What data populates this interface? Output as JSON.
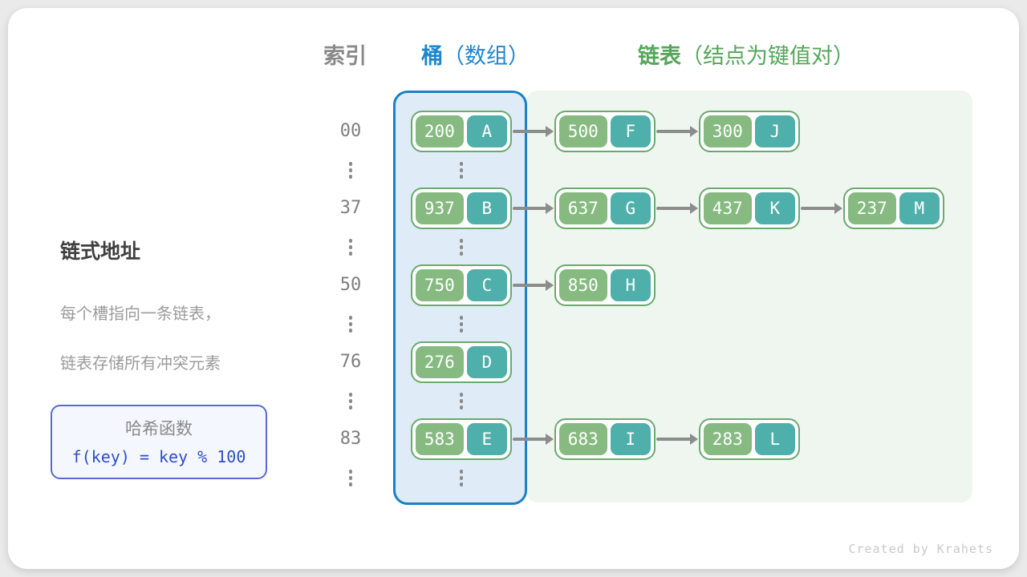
{
  "headers": {
    "index": "索引",
    "bucket_bold": "桶",
    "bucket_rest": "（数组）",
    "list_bold": "链表",
    "list_rest": "（结点为键值对）"
  },
  "left_panel": {
    "title": "链式地址",
    "desc_line1": "每个槽指向一条链表，",
    "desc_line2": "链表存储所有冲突元素",
    "hash_box": {
      "title": "哈希函数",
      "formula": "f(key) = key % 100"
    }
  },
  "rows": [
    {
      "index": "00",
      "nodes": [
        {
          "key": "200",
          "val": "A"
        },
        {
          "key": "500",
          "val": "F"
        },
        {
          "key": "300",
          "val": "J"
        }
      ]
    },
    {
      "index": "37",
      "nodes": [
        {
          "key": "937",
          "val": "B"
        },
        {
          "key": "637",
          "val": "G"
        },
        {
          "key": "437",
          "val": "K"
        },
        {
          "key": "237",
          "val": "M"
        }
      ]
    },
    {
      "index": "50",
      "nodes": [
        {
          "key": "750",
          "val": "C"
        },
        {
          "key": "850",
          "val": "H"
        }
      ]
    },
    {
      "index": "76",
      "nodes": [
        {
          "key": "276",
          "val": "D"
        }
      ]
    },
    {
      "index": "83",
      "nodes": [
        {
          "key": "583",
          "val": "E"
        },
        {
          "key": "683",
          "val": "I"
        },
        {
          "key": "283",
          "val": "L"
        }
      ]
    }
  ],
  "footer": {
    "credit": "Created by Krahets"
  },
  "colors": {
    "header_index": "#8a8a8a",
    "header_bucket": "#1d87cf",
    "header_list": "#55a65a",
    "bucket_panel_border": "#1b80c4",
    "bucket_panel_fill": "#dfecf7",
    "list_panel_fill": "#eff6f0",
    "node_border": "#69aa6d",
    "node_key_fill": "#86ba81",
    "node_value_fill": "#4fafaa",
    "arrow": "#8c8c8c",
    "hash_box_border": "#5a68d0",
    "hash_formula_text": "#2d4ec9"
  }
}
